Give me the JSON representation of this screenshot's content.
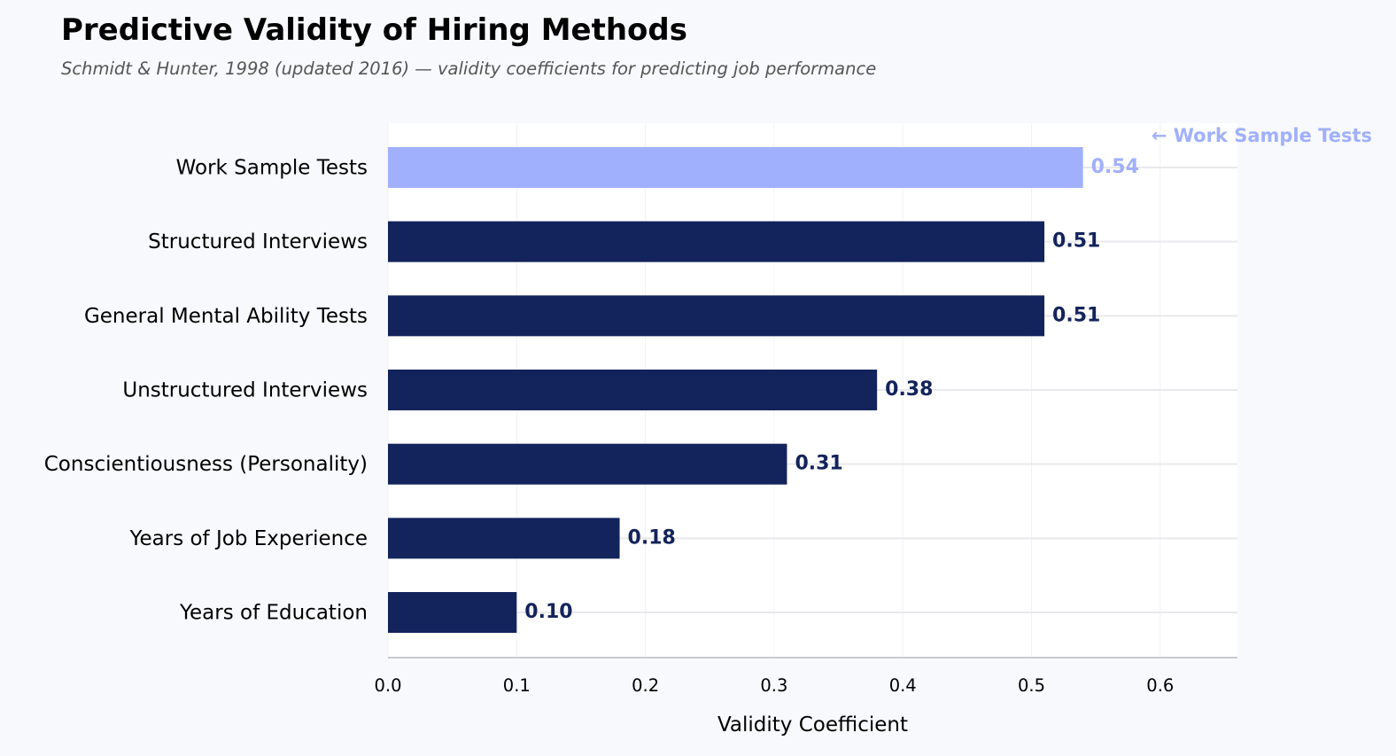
{
  "chart_data": {
    "type": "bar",
    "orientation": "horizontal",
    "title": "Predictive Validity of Hiring Methods",
    "subtitle": "Schmidt & Hunter, 1998 (updated 2016) — validity coefficients for predicting job performance",
    "categories": [
      "Work Sample Tests",
      "Structured Interviews",
      "General Mental Ability Tests",
      "Unstructured Interviews",
      "Conscientiousness (Personality)",
      "Years of Job Experience",
      "Years of Education"
    ],
    "values": [
      0.54,
      0.51,
      0.51,
      0.38,
      0.31,
      0.18,
      0.1
    ],
    "value_labels": [
      "0.54",
      "0.51",
      "0.51",
      "0.38",
      "0.31",
      "0.18",
      "0.10"
    ],
    "highlight_index": 0,
    "annotation": "← Work Sample Tests",
    "xlabel": "Validity Coefficient",
    "ylabel": "",
    "xlim": [
      0,
      0.66
    ],
    "xticks": [
      0.0,
      0.1,
      0.2,
      0.3,
      0.4,
      0.5,
      0.6
    ],
    "xtick_labels": [
      "0.0",
      "0.1",
      "0.2",
      "0.3",
      "0.4",
      "0.5",
      "0.6"
    ],
    "grid": true,
    "colors": {
      "bar": "#13235b",
      "highlight": "#a0b0fc",
      "label_text": "#13235b",
      "background": "#f8f9fc",
      "plot_background": "#ffffff"
    }
  }
}
